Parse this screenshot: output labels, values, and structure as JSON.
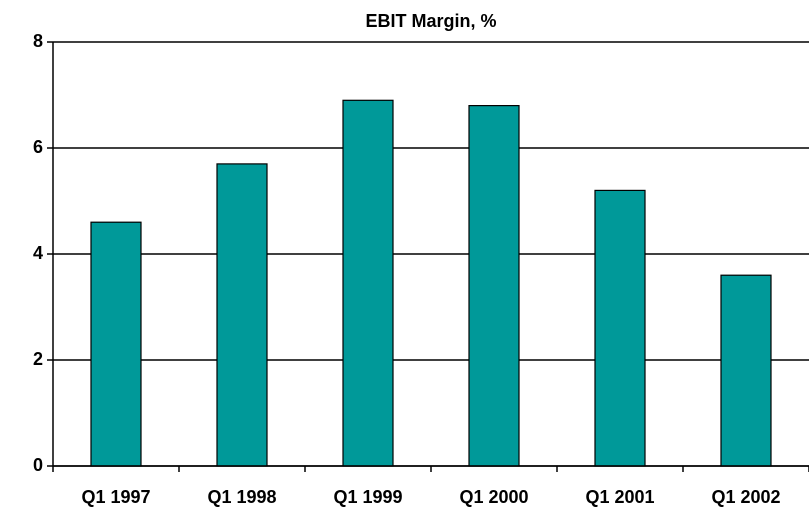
{
  "chart_data": {
    "type": "bar",
    "title": "EBIT Margin, %",
    "categories": [
      "Q1 1997",
      "Q1 1998",
      "Q1 1999",
      "Q1 2000",
      "Q1 2001",
      "Q1 2002"
    ],
    "values": [
      4.6,
      5.7,
      6.9,
      6.8,
      5.2,
      3.6
    ],
    "color": "#009999",
    "ylim": [
      0,
      8
    ],
    "yticks": [
      0,
      2,
      4,
      6,
      8
    ],
    "grid": true
  }
}
